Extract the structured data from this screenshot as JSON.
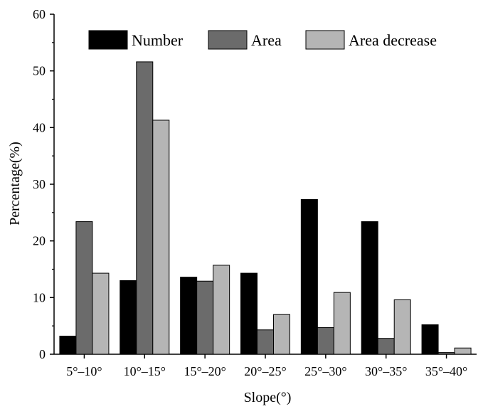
{
  "chart_data": {
    "type": "bar",
    "xlabel": "Slope(°)",
    "ylabel": "Percentage(%)",
    "ylim": [
      0,
      60
    ],
    "yticks": [
      0,
      10,
      20,
      30,
      40,
      50,
      60
    ],
    "categories": [
      "5°–10°",
      "10°–15°",
      "15°–20°",
      "20°–25°",
      "25°–30°",
      "30°–35°",
      "35°–40°"
    ],
    "series": [
      {
        "name": "Number",
        "color": "#000000",
        "values": [
          3.2,
          13.0,
          13.6,
          14.3,
          27.3,
          23.4,
          5.2
        ]
      },
      {
        "name": "Area",
        "color": "#6b6b6b",
        "values": [
          23.4,
          51.6,
          12.9,
          4.3,
          4.7,
          2.8,
          0.3
        ]
      },
      {
        "name": "Area decrease",
        "color": "#b5b5b5",
        "values": [
          14.3,
          41.3,
          15.7,
          7.0,
          10.9,
          9.6,
          1.1
        ]
      }
    ],
    "legend_position": "top",
    "grid": false
  }
}
